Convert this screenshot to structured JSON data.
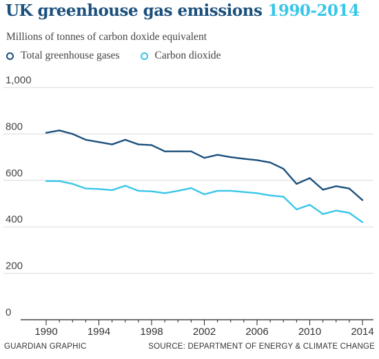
{
  "title": {
    "main": "UK greenhouse gas emissions",
    "range": "1990-2014"
  },
  "subtitle": "Millions of tonnes of carbon doxide equivalent",
  "footer": {
    "credit": "GUARDIAN GRAPHIC",
    "source": "SOURCE: DEPARTMENT OF ENERGY & CLIMATE CHANGE"
  },
  "colors": {
    "total": "#1b4f7c",
    "co2": "#38c6e8",
    "grid": "#d9d9d9",
    "axis": "#222222"
  },
  "chart_data": {
    "type": "line",
    "title": "UK greenhouse gas emissions 1990-2014",
    "ylabel": "Millions of tonnes of carbon doxide equivalent",
    "xlabel": "",
    "ylim": [
      0,
      1000
    ],
    "xlim": [
      1990,
      2014
    ],
    "yticks": [
      0,
      200,
      400,
      600,
      800,
      1000
    ],
    "ytick_labels": [
      "0",
      "200",
      "400",
      "600",
      "800",
      "1,000"
    ],
    "xticks": [
      1990,
      1994,
      1998,
      2002,
      2006,
      2010,
      2014
    ],
    "xtick_labels": [
      "1990",
      "1994",
      "1998",
      "2002",
      "2006",
      "2010",
      "2014"
    ],
    "grid": true,
    "legend_position": "top-left",
    "x": [
      1990,
      1991,
      1992,
      1993,
      1994,
      1995,
      1996,
      1997,
      1998,
      1999,
      2000,
      2001,
      2002,
      2003,
      2004,
      2005,
      2006,
      2007,
      2008,
      2009,
      2010,
      2011,
      2012,
      2013,
      2014
    ],
    "series": [
      {
        "name": "Total greenhouse gases",
        "color": "#1b4f7c",
        "values": [
          805,
          815,
          800,
          775,
          765,
          755,
          775,
          755,
          752,
          725,
          725,
          725,
          697,
          710,
          700,
          693,
          687,
          677,
          650,
          585,
          610,
          560,
          575,
          565,
          515
        ]
      },
      {
        "name": "Carbon dioxide",
        "color": "#38c6e8",
        "values": [
          597,
          597,
          585,
          565,
          563,
          558,
          577,
          555,
          553,
          545,
          555,
          567,
          540,
          555,
          555,
          550,
          545,
          535,
          530,
          475,
          495,
          455,
          470,
          460,
          420
        ]
      }
    ]
  }
}
